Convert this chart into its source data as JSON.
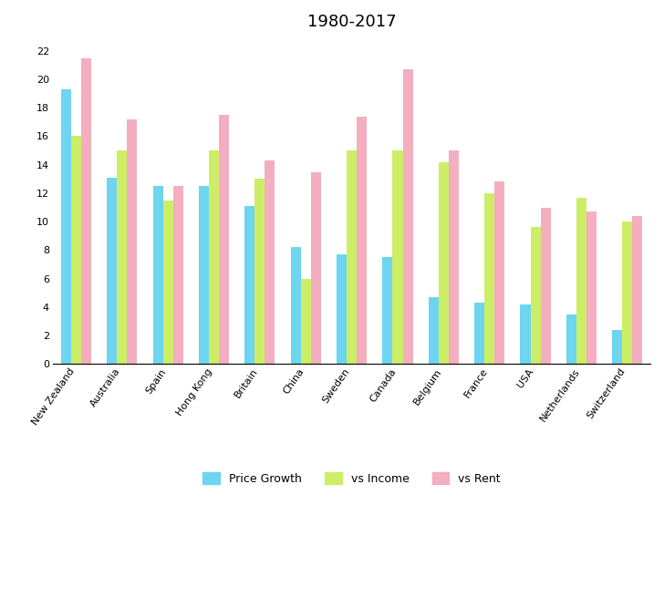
{
  "title": "1980-2017",
  "categories": [
    "New Zealand",
    "Australia",
    "Spain",
    "Hong Kong",
    "Britain",
    "China",
    "Sweden",
    "Canada",
    "Belgium",
    "France",
    "USA",
    "Netherlands",
    "Switzerland"
  ],
  "price_growth": [
    19.3,
    13.1,
    12.5,
    12.5,
    11.1,
    8.2,
    7.7,
    7.5,
    4.7,
    4.3,
    4.2,
    3.5,
    2.4
  ],
  "vs_income": [
    16.0,
    15.0,
    11.5,
    15.0,
    13.0,
    6.0,
    15.0,
    15.0,
    14.2,
    12.0,
    9.6,
    11.7,
    10.0
  ],
  "vs_rent": [
    21.5,
    17.2,
    12.5,
    17.5,
    14.3,
    13.5,
    17.4,
    20.7,
    15.0,
    12.8,
    11.0,
    10.7,
    10.4
  ],
  "color_price_growth": "#6dd5f0",
  "color_vs_income": "#ccee66",
  "color_vs_rent": "#f4aec0",
  "ylim": [
    0,
    23
  ],
  "yticks": [
    0,
    2,
    4,
    6,
    8,
    10,
    12,
    14,
    16,
    18,
    20,
    22
  ],
  "legend_labels": [
    "Price Growth",
    "vs Income",
    "vs Rent"
  ],
  "title_fontsize": 13,
  "tick_fontsize": 8,
  "legend_fontsize": 9
}
